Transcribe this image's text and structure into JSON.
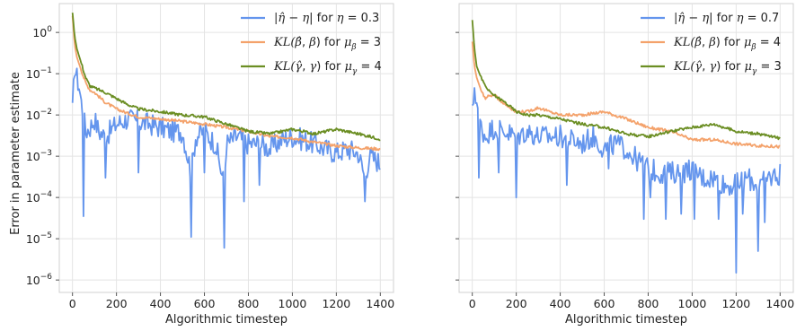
{
  "figure": {
    "ylabel": "Error in parameter estimate"
  },
  "chart_data": [
    {
      "type": "line",
      "xlabel": "Algorithmic timestep",
      "ylabel": "Error in parameter estimate",
      "xlim": [
        -60,
        1460
      ],
      "ylim": [
        5e-07,
        5
      ],
      "yscale": "log",
      "grid": true,
      "legend_position": "top-right",
      "xticks": [
        0,
        200,
        400,
        600,
        800,
        1000,
        1200,
        1400
      ],
      "yticks": [
        1e-06,
        1e-05,
        0.0001,
        0.001,
        0.01,
        0.1,
        1
      ],
      "ytick_labels": [
        [
          "10",
          "−6"
        ],
        [
          "10",
          "−5"
        ],
        [
          "10",
          "−4"
        ],
        [
          "10",
          "−3"
        ],
        [
          "10",
          "−2"
        ],
        [
          "10",
          "−1"
        ],
        [
          "10",
          "0"
        ]
      ],
      "series": [
        {
          "name": "|η̂ − η| for η = 0.3",
          "legend": {
            "pre": "|",
            "sym1": "η̂",
            "mid": " − ",
            "sym2": "η",
            "post": "| for ",
            "sym3": "η",
            "tail": " = 0.3"
          },
          "color": "#6495ed",
          "noisy": true,
          "x": [
            0,
            10,
            20,
            30,
            40,
            50,
            60,
            80,
            100,
            120,
            150,
            200,
            250,
            300,
            350,
            400,
            450,
            500,
            540,
            560,
            600,
            650,
            690,
            700,
            750,
            800,
            850,
            900,
            950,
            1000,
            1050,
            1100,
            1150,
            1200,
            1250,
            1300,
            1330,
            1350,
            1400
          ],
          "values": [
            0.012,
            0.15,
            0.08,
            0.05,
            0.02,
            0.01,
            0.004,
            0.005,
            0.008,
            0.004,
            0.003,
            0.006,
            0.008,
            0.007,
            0.006,
            0.005,
            0.004,
            0.004,
            0.0004,
            0.003,
            0.004,
            0.002,
            0.0002,
            0.002,
            0.003,
            0.002,
            0.002,
            0.0015,
            0.0025,
            0.003,
            0.0025,
            0.002,
            0.0015,
            0.0012,
            0.0015,
            0.0012,
            0.0003,
            0.001,
            0.0007
          ],
          "dips": [
            [
              50,
              3.5e-05
            ],
            [
              150,
              0.0003
            ],
            [
              300,
              0.0004
            ],
            [
              540,
              1.1e-05
            ],
            [
              600,
              0.0004
            ],
            [
              690,
              6e-06
            ],
            [
              780,
              8e-05
            ],
            [
              850,
              0.0002
            ],
            [
              1330,
              8e-05
            ],
            [
              1395,
              0.0005
            ]
          ]
        },
        {
          "name": "KL(β̂, β) for μβ = 3",
          "legend": {
            "pre": "KL(",
            "sym1": "β̂",
            "mid": ", ",
            "sym2": "β",
            "post": ") for ",
            "sym3": "μ",
            "sub3": "β",
            "tail": " = 3"
          },
          "color": "#f4a26b",
          "noisy": false,
          "x": [
            0,
            10,
            20,
            40,
            60,
            80,
            100,
            150,
            200,
            250,
            300,
            400,
            500,
            600,
            700,
            800,
            900,
            1000,
            1100,
            1200,
            1300,
            1400
          ],
          "values": [
            2.5,
            0.5,
            0.25,
            0.12,
            0.06,
            0.04,
            0.035,
            0.02,
            0.014,
            0.011,
            0.009,
            0.008,
            0.007,
            0.006,
            0.005,
            0.004,
            0.003,
            0.0028,
            0.0022,
            0.0018,
            0.0016,
            0.0015
          ]
        },
        {
          "name": "KL(γ̂, γ) for μγ = 4",
          "legend": {
            "pre": "KL(",
            "sym1": "γ̂",
            "mid": ", ",
            "sym2": "γ",
            "post": ") for ",
            "sym3": "μ",
            "sub3": "γ",
            "tail": " = 4"
          },
          "color": "#6b8e23",
          "noisy": false,
          "x": [
            0,
            10,
            20,
            40,
            60,
            80,
            100,
            150,
            200,
            250,
            300,
            400,
            500,
            600,
            700,
            800,
            900,
            1000,
            1050,
            1100,
            1200,
            1300,
            1400
          ],
          "values": [
            3.0,
            0.8,
            0.4,
            0.18,
            0.08,
            0.05,
            0.045,
            0.035,
            0.025,
            0.018,
            0.014,
            0.012,
            0.01,
            0.009,
            0.006,
            0.004,
            0.0035,
            0.0045,
            0.004,
            0.0035,
            0.0045,
            0.0035,
            0.0026
          ]
        }
      ]
    },
    {
      "type": "line",
      "xlabel": "Algorithmic timestep",
      "ylabel": "",
      "xlim": [
        -60,
        1460
      ],
      "ylim": [
        5e-07,
        5
      ],
      "yscale": "log",
      "grid": true,
      "legend_position": "top-right",
      "xticks": [
        0,
        200,
        400,
        600,
        800,
        1000,
        1200,
        1400
      ],
      "yticks": [
        1e-06,
        1e-05,
        0.0001,
        0.001,
        0.01,
        0.1,
        1
      ],
      "ytick_labels": [],
      "series": [
        {
          "name": "|η̂ − η| for η = 0.7",
          "legend": {
            "pre": "|",
            "sym1": "η̂",
            "mid": " − ",
            "sym2": "η",
            "post": "| for ",
            "sym3": "η",
            "tail": " = 0.7"
          },
          "color": "#6495ed",
          "noisy": true,
          "x": [
            0,
            10,
            20,
            30,
            40,
            60,
            80,
            100,
            150,
            200,
            250,
            300,
            400,
            500,
            550,
            600,
            650,
            700,
            750,
            800,
            850,
            900,
            950,
            1000,
            1050,
            1100,
            1150,
            1200,
            1250,
            1300,
            1350,
            1400
          ],
          "values": [
            0.01,
            0.05,
            0.02,
            0.01,
            0.005,
            0.003,
            0.004,
            0.005,
            0.004,
            0.003,
            0.004,
            0.003,
            0.003,
            0.002,
            0.003,
            0.0015,
            0.002,
            0.0015,
            0.0008,
            0.0005,
            0.0004,
            0.0004,
            0.0004,
            0.0005,
            0.0003,
            0.0003,
            0.0002,
            0.0002,
            0.0003,
            0.0002,
            0.0003,
            0.0004
          ],
          "dips": [
            [
              30,
              0.0003
            ],
            [
              120,
              0.0004
            ],
            [
              200,
              0.0001
            ],
            [
              430,
              0.0002
            ],
            [
              620,
              0.0005
            ],
            [
              780,
              3e-05
            ],
            [
              810,
              0.0001
            ],
            [
              880,
              3e-05
            ],
            [
              950,
              4e-05
            ],
            [
              1010,
              3e-05
            ],
            [
              1120,
              3e-05
            ],
            [
              1200,
              1.5e-06
            ],
            [
              1230,
              4e-05
            ],
            [
              1300,
              5e-06
            ],
            [
              1330,
              2.5e-05
            ],
            [
              1395,
              0.0002
            ]
          ]
        },
        {
          "name": "KL(β̂, β) for μβ = 4",
          "legend": {
            "pre": "KL(",
            "sym1": "β̂",
            "mid": ", ",
            "sym2": "β",
            "post": ") for ",
            "sym3": "μ",
            "sub3": "β",
            "tail": " = 4"
          },
          "color": "#f4a26b",
          "noisy": false,
          "x": [
            0,
            10,
            20,
            40,
            60,
            80,
            100,
            150,
            200,
            250,
            300,
            350,
            400,
            500,
            600,
            700,
            800,
            900,
            1000,
            1100,
            1200,
            1300,
            1400
          ],
          "values": [
            0.6,
            0.15,
            0.08,
            0.04,
            0.025,
            0.03,
            0.03,
            0.018,
            0.012,
            0.012,
            0.015,
            0.012,
            0.01,
            0.01,
            0.012,
            0.008,
            0.005,
            0.004,
            0.0025,
            0.0025,
            0.002,
            0.0018,
            0.0017
          ]
        },
        {
          "name": "KL(γ̂, γ) for μγ = 3",
          "legend": {
            "pre": "KL(",
            "sym1": "γ̂",
            "mid": ", ",
            "sym2": "γ",
            "post": ") for ",
            "sym3": "μ",
            "sub3": "γ",
            "tail": " = 3"
          },
          "color": "#6b8e23",
          "noisy": false,
          "x": [
            0,
            10,
            20,
            40,
            60,
            80,
            100,
            150,
            200,
            250,
            300,
            400,
            500,
            600,
            700,
            800,
            900,
            1000,
            1100,
            1200,
            1300,
            1400
          ],
          "values": [
            2.0,
            0.4,
            0.15,
            0.08,
            0.05,
            0.035,
            0.03,
            0.02,
            0.012,
            0.01,
            0.01,
            0.008,
            0.006,
            0.005,
            0.0035,
            0.003,
            0.004,
            0.005,
            0.006,
            0.004,
            0.0035,
            0.0027
          ]
        }
      ]
    }
  ]
}
